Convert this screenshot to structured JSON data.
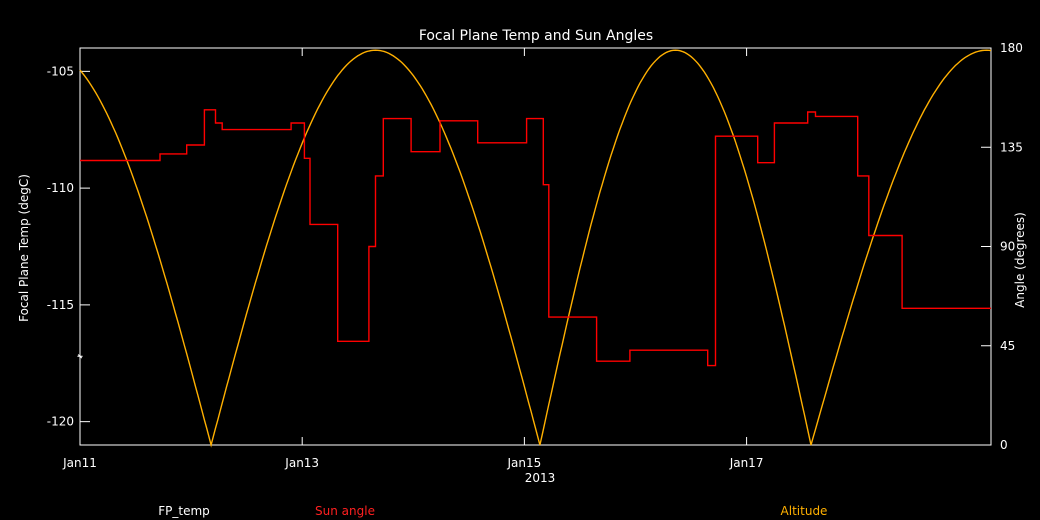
{
  "chart_data": {
    "type": "line",
    "title": "Focal Plane Temp and Sun Angles",
    "xlabel": "2013",
    "ylabel_left": "Focal Plane Temp (degC)",
    "ylabel_right": "Angle (degrees)",
    "x_unit": "days since Jan 11, 2013",
    "xlim": [
      0,
      8.2
    ],
    "ylim_left": [
      -121,
      -104
    ],
    "ylim_right": [
      0,
      180
    ],
    "x_ticks": [
      {
        "label": "Jan11",
        "x": 0
      },
      {
        "label": "Jan13",
        "x": 2
      },
      {
        "label": "Jan15",
        "x": 4
      },
      {
        "label": "Jan17",
        "x": 6
      }
    ],
    "y_ticks_left": [
      -105,
      -110,
      -115,
      -120
    ],
    "y_ticks_right": [
      0,
      45,
      90,
      135,
      180
    ],
    "legend": [
      "FP_temp",
      "Sun angle",
      "Altitude"
    ],
    "colors": {
      "fp_temp": "#ffffff",
      "sun_angle": "#ff0000",
      "altitude": "#ffb000",
      "frame": "#ffffff"
    },
    "series": [
      {
        "name": "FP_temp",
        "axis": "left",
        "style": "star",
        "points": [
          [
            0.0,
            -117.2
          ],
          [
            0.2,
            -117.2
          ],
          [
            0.4,
            -117.3
          ],
          [
            0.6,
            -117.2
          ],
          [
            0.8,
            -117.2
          ],
          [
            0.95,
            -117.3
          ],
          [
            1.05,
            -117.4
          ],
          [
            1.1,
            -117.8
          ],
          [
            1.15,
            -118.3
          ],
          [
            1.18,
            -118.4
          ],
          [
            1.2,
            -118.0
          ],
          [
            1.22,
            -117.2
          ],
          [
            1.24,
            -116.4
          ],
          [
            1.26,
            -115.3
          ],
          [
            1.28,
            -114.2
          ],
          [
            1.3,
            -113.0
          ],
          [
            1.32,
            -112.0
          ],
          [
            1.35,
            -112.6
          ],
          [
            1.4,
            -113.8
          ],
          [
            1.45,
            -114.6
          ],
          [
            1.5,
            -115.2
          ],
          [
            1.6,
            -116.3
          ],
          [
            1.7,
            -117.2
          ],
          [
            1.8,
            -117.9
          ],
          [
            1.9,
            -118.5
          ],
          [
            2.0,
            -118.9
          ],
          [
            2.1,
            -119.3
          ],
          [
            2.2,
            -119.5
          ],
          [
            2.3,
            -119.7
          ],
          [
            2.4,
            -119.7
          ],
          [
            2.5,
            -119.6
          ],
          [
            2.6,
            -119.8
          ],
          [
            2.7,
            -119.8
          ],
          [
            2.8,
            -119.9
          ],
          [
            2.9,
            -119.8
          ],
          [
            3.0,
            -119.7
          ],
          [
            3.1,
            -119.5
          ],
          [
            3.2,
            -119.4
          ],
          [
            3.3,
            -119.5
          ],
          [
            3.4,
            -119.5
          ],
          [
            3.5,
            -119.3
          ],
          [
            3.6,
            -119.0
          ],
          [
            3.7,
            -118.8
          ],
          [
            3.8,
            -118.6
          ],
          [
            3.9,
            -118.3
          ],
          [
            3.95,
            -118.1
          ],
          [
            4.0,
            -118.2
          ],
          [
            4.05,
            -118.5
          ],
          [
            4.1,
            -118.6
          ],
          [
            4.13,
            -118.0
          ],
          [
            4.15,
            -117.0
          ],
          [
            4.17,
            -115.8
          ],
          [
            4.19,
            -114.6
          ],
          [
            4.21,
            -113.4
          ],
          [
            4.23,
            -112.3
          ],
          [
            4.25,
            -111.3
          ],
          [
            4.27,
            -110.3
          ],
          [
            4.29,
            -109.5
          ],
          [
            4.31,
            -109.1
          ],
          [
            4.33,
            -109.6
          ],
          [
            4.36,
            -110.5
          ],
          [
            4.4,
            -112.0
          ],
          [
            4.45,
            -114.0
          ],
          [
            4.5,
            -116.0
          ],
          [
            4.55,
            -117.8
          ],
          [
            4.6,
            -119.0
          ],
          [
            4.65,
            -119.6
          ],
          [
            4.8,
            -119.7
          ],
          [
            5.0,
            -119.8
          ],
          [
            5.2,
            -119.8
          ],
          [
            5.4,
            -119.8
          ],
          [
            5.6,
            -119.7
          ],
          [
            5.8,
            -119.6
          ],
          [
            5.95,
            -119.3
          ],
          [
            6.05,
            -119.0
          ],
          [
            6.15,
            -118.8
          ],
          [
            6.25,
            -118.8
          ],
          [
            6.3,
            -118.6
          ],
          [
            6.4,
            -119.0
          ],
          [
            6.48,
            -118.8
          ],
          [
            6.52,
            -118.4
          ],
          [
            6.55,
            -117.5
          ],
          [
            6.57,
            -116.0
          ],
          [
            6.59,
            -114.0
          ],
          [
            6.61,
            -112.0
          ],
          [
            6.63,
            -110.0
          ],
          [
            6.65,
            -108.0
          ],
          [
            6.67,
            -106.0
          ],
          [
            6.69,
            -104.9
          ],
          [
            6.71,
            -105.4
          ],
          [
            6.73,
            -106.5
          ],
          [
            6.76,
            -108.5
          ],
          [
            6.8,
            -111.0
          ],
          [
            6.85,
            -114.0
          ],
          [
            6.9,
            -116.5
          ],
          [
            6.95,
            -118.5
          ],
          [
            7.0,
            -119.5
          ],
          [
            7.1,
            -119.7
          ],
          [
            7.3,
            -119.8
          ],
          [
            7.5,
            -119.8
          ],
          [
            7.7,
            -119.8
          ],
          [
            7.9,
            -119.9
          ],
          [
            8.1,
            -119.9
          ]
        ]
      },
      {
        "name": "Sun angle",
        "axis": "right",
        "style": "step",
        "points": [
          [
            0.0,
            129
          ],
          [
            0.72,
            129
          ],
          [
            0.72,
            132
          ],
          [
            0.96,
            132
          ],
          [
            0.96,
            136
          ],
          [
            1.12,
            136
          ],
          [
            1.12,
            152
          ],
          [
            1.22,
            152
          ],
          [
            1.22,
            146
          ],
          [
            1.28,
            146
          ],
          [
            1.28,
            143
          ],
          [
            1.9,
            143
          ],
          [
            1.9,
            146
          ],
          [
            2.02,
            146
          ],
          [
            2.02,
            130
          ],
          [
            2.07,
            130
          ],
          [
            2.07,
            100
          ],
          [
            2.3,
            100
          ],
          [
            2.3,
            100
          ],
          [
            2.32,
            100
          ],
          [
            2.32,
            47
          ],
          [
            2.6,
            47
          ],
          [
            2.6,
            90
          ],
          [
            2.66,
            90
          ],
          [
            2.66,
            122
          ],
          [
            2.73,
            122
          ],
          [
            2.73,
            148
          ],
          [
            2.98,
            148
          ],
          [
            2.98,
            133
          ],
          [
            3.24,
            133
          ],
          [
            3.24,
            147
          ],
          [
            3.58,
            147
          ],
          [
            3.58,
            137
          ],
          [
            4.02,
            137
          ],
          [
            4.02,
            148
          ],
          [
            4.17,
            148
          ],
          [
            4.17,
            118
          ],
          [
            4.22,
            118
          ],
          [
            4.22,
            58
          ],
          [
            4.65,
            58
          ],
          [
            4.65,
            38
          ],
          [
            4.95,
            38
          ],
          [
            4.95,
            43
          ],
          [
            5.65,
            43
          ],
          [
            5.65,
            36
          ],
          [
            5.72,
            36
          ],
          [
            5.72,
            140
          ],
          [
            6.1,
            140
          ],
          [
            6.1,
            128
          ],
          [
            6.25,
            128
          ],
          [
            6.25,
            146
          ],
          [
            6.55,
            146
          ],
          [
            6.55,
            151
          ],
          [
            6.62,
            151
          ],
          [
            6.62,
            149
          ],
          [
            7.0,
            149
          ],
          [
            7.0,
            122
          ],
          [
            7.1,
            122
          ],
          [
            7.1,
            95
          ],
          [
            7.4,
            95
          ],
          [
            7.4,
            62
          ],
          [
            8.2,
            62
          ]
        ]
      },
      {
        "name": "Altitude",
        "axis": "right",
        "style": "line",
        "min_times": [
          1.18,
          4.14,
          6.58
        ],
        "max_times": [
          2.62,
          5.53
        ],
        "peak_value": 179,
        "edge_values": {
          "start": 164,
          "end": 173
        }
      }
    ]
  }
}
